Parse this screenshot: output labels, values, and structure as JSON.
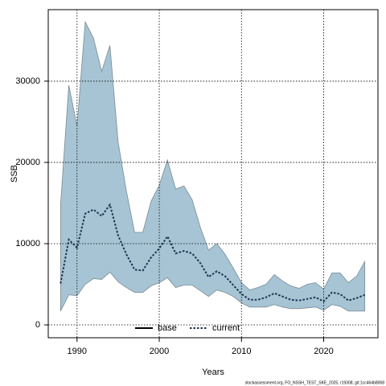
{
  "chart_data": {
    "type": "line",
    "xlabel": "Years",
    "ylabel": "SSB",
    "footer": "stockassessment.org, FO_NSSH_TEST_SKE_2025, r19308, git:1cc464b8068",
    "x": [
      1988,
      1989,
      1990,
      1991,
      1992,
      1993,
      1994,
      1995,
      1996,
      1997,
      1998,
      1999,
      2000,
      2001,
      2002,
      2003,
      2004,
      2005,
      2006,
      2007,
      2008,
      2009,
      2010,
      2011,
      2012,
      2013,
      2014,
      2015,
      2016,
      2017,
      2018,
      2019,
      2020,
      2021,
      2022,
      2023,
      2024,
      2025
    ],
    "series": [
      {
        "name": "current",
        "color": "#1a3550",
        "values": [
          5100,
          10500,
          9500,
          13700,
          14200,
          13400,
          14800,
          11000,
          8700,
          6800,
          6700,
          8300,
          9400,
          10900,
          8800,
          9100,
          8800,
          7600,
          5900,
          6600,
          6000,
          4900,
          3800,
          3100,
          3100,
          3400,
          3900,
          3500,
          3100,
          3000,
          3200,
          3400,
          2900,
          4000,
          3800,
          3000,
          3300,
          3700
        ],
        "upper": [
          14800,
          29500,
          24500,
          37300,
          35300,
          31200,
          34400,
          22500,
          16500,
          11400,
          11400,
          15200,
          17200,
          20300,
          16700,
          17100,
          15400,
          12000,
          9200,
          10000,
          8700,
          7000,
          5200,
          4300,
          4600,
          5000,
          6200,
          5400,
          4800,
          4500,
          5000,
          5200,
          4400,
          6400,
          6400,
          5200,
          6000,
          7800
        ],
        "lower": [
          1700,
          3700,
          3600,
          5000,
          5700,
          5600,
          6500,
          5300,
          4600,
          4000,
          4000,
          4800,
          5200,
          5800,
          4600,
          4900,
          4900,
          4200,
          3500,
          4300,
          4000,
          3500,
          2700,
          2200,
          2200,
          2200,
          2500,
          2200,
          2000,
          2000,
          2100,
          2200,
          1800,
          2500,
          2300,
          1700,
          1700,
          1700
        ]
      }
    ],
    "band_color": "#a6c4d4",
    "legend": [
      {
        "name": "base",
        "color": "#000000",
        "style": "solid"
      },
      {
        "name": "current",
        "color": "#1a3550",
        "style": "dotted"
      }
    ],
    "xlim": [
      1986.5,
      2026.6
    ],
    "ylim": [
      -1580,
      38800
    ],
    "xticks": [
      1990,
      2000,
      2010,
      2020
    ],
    "yticks": [
      0,
      10000,
      20000,
      30000
    ],
    "grid": true
  }
}
